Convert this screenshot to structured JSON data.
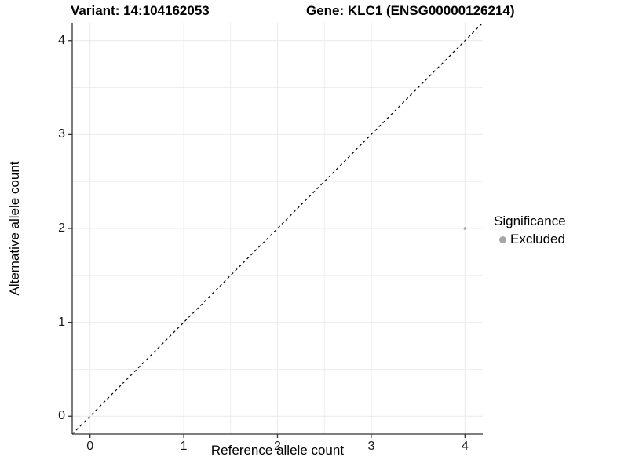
{
  "chart_data": {
    "type": "scatter",
    "title_variant": "Variant: 14:104162053",
    "title_gene": "Gene: KLC1 (ENSG00000126214)",
    "xlabel": "Reference allele count",
    "ylabel": "Alternative allele count",
    "xlim": [
      -0.19,
      4.19
    ],
    "ylim": [
      -0.19,
      4.19
    ],
    "x_ticks": [
      0,
      1,
      2,
      3,
      4
    ],
    "y_ticks": [
      0,
      1,
      2,
      3,
      4
    ],
    "x_minor_ticks": [
      0.5,
      1.5,
      2.5,
      3.5
    ],
    "y_minor_ticks": [
      0.5,
      1.5,
      2.5,
      3.5
    ],
    "grid": {
      "major": true,
      "minor": true,
      "color": "#ebebeb"
    },
    "identity_line": {
      "style": "dashed",
      "color": "#000000",
      "from": [
        -0.19,
        -0.19
      ],
      "to": [
        4.19,
        4.19
      ]
    },
    "points": [
      {
        "x": 4,
        "y": 2,
        "significance": "Excluded",
        "color": "#a6a6a6",
        "radius": 1.8
      }
    ],
    "legend": {
      "title": "Significance",
      "position": "right",
      "entries": [
        {
          "label": "Excluded",
          "color": "#a6a6a6",
          "key_radius": 4.5
        }
      ]
    },
    "colors": {
      "axis": "#333333",
      "tick_text": "#1a1a1a",
      "grid": "#ebebeb"
    }
  }
}
